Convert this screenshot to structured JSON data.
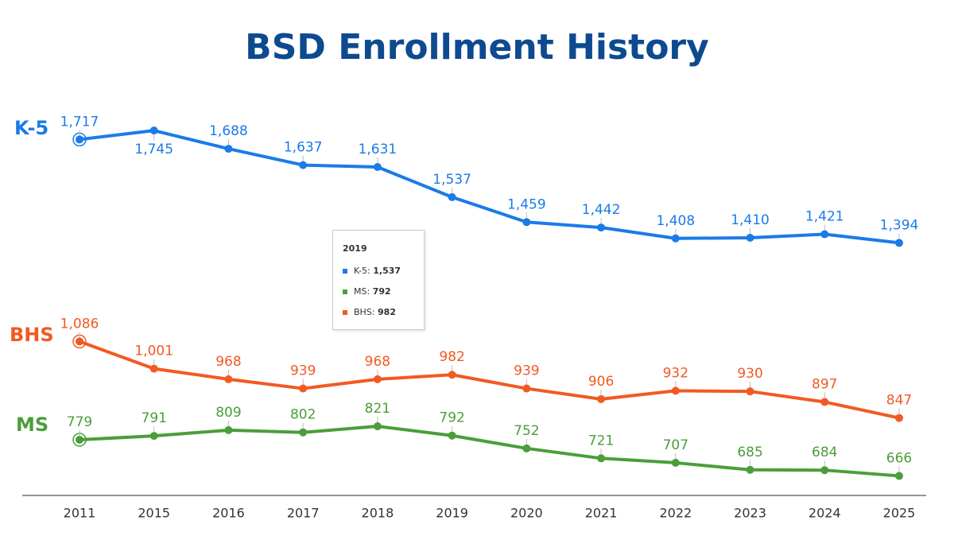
{
  "chart_data": {
    "type": "line",
    "title": "BSD Enrollment History",
    "categories": [
      "2011",
      "2015",
      "2016",
      "2017",
      "2018",
      "2019",
      "2020",
      "2021",
      "2022",
      "2023",
      "2024",
      "2025"
    ],
    "series": [
      {
        "name": "K-5",
        "color": "#1a7be8",
        "values": [
          1717,
          1745,
          1688,
          1637,
          1631,
          1537,
          1459,
          1442,
          1408,
          1410,
          1421,
          1394
        ],
        "value_labels": [
          "1,717",
          "1,745",
          "1,688",
          "1,637",
          "1,631",
          "1,537",
          "1,459",
          "1,442",
          "1,408",
          "1,410",
          "1,421",
          "1,394"
        ]
      },
      {
        "name": "MS",
        "color": "#4a9e3a",
        "values": [
          779,
          791,
          809,
          802,
          821,
          792,
          752,
          721,
          707,
          685,
          684,
          666
        ]
      },
      {
        "name": "BHS",
        "color": "#f15a22",
        "values": [
          1086,
          1001,
          968,
          939,
          968,
          982,
          939,
          906,
          932,
          930,
          897,
          847
        ],
        "value_labels": [
          "1,086",
          "1,001",
          "968",
          "939",
          "968",
          "982",
          "939",
          "906",
          "932",
          "930",
          "897",
          "847"
        ]
      }
    ],
    "ylim": [
      600,
      1800
    ],
    "tooltip_index": 5
  }
}
